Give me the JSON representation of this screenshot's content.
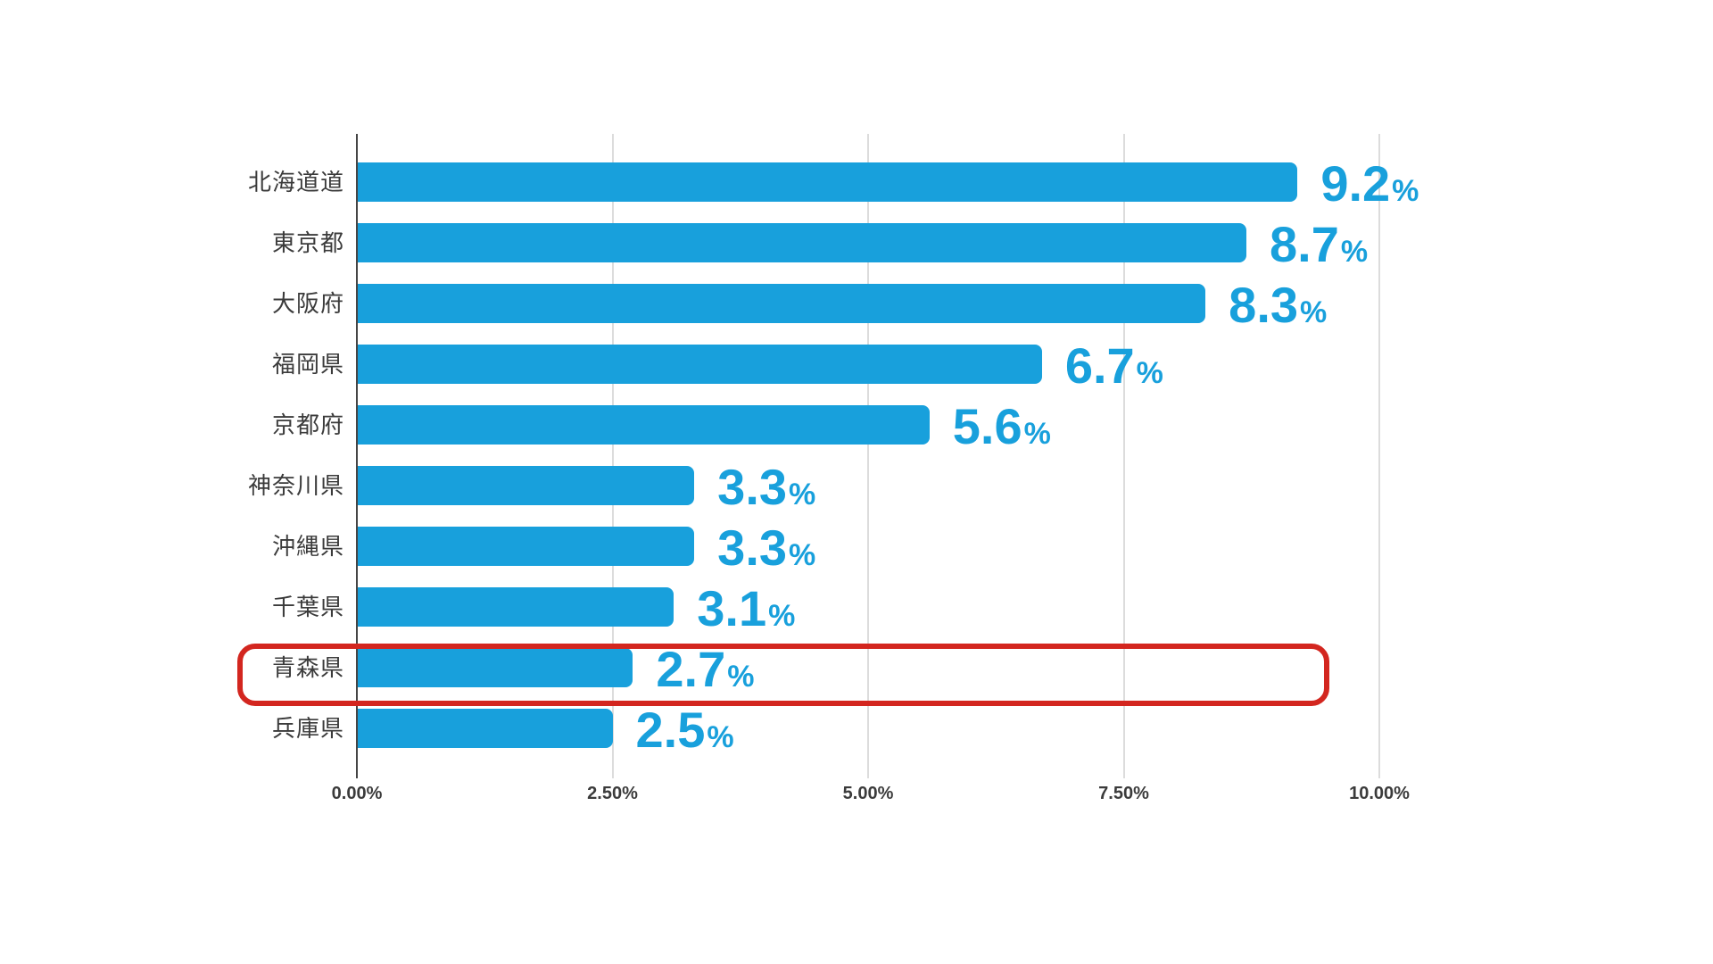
{
  "chart_data": {
    "type": "bar",
    "orientation": "horizontal",
    "title": "",
    "categories": [
      "北海道道",
      "東京都",
      "大阪府",
      "福岡県",
      "京都府",
      "神奈川県",
      "沖縄県",
      "千葉県",
      "青森県",
      "兵庫県"
    ],
    "values": [
      9.2,
      8.7,
      8.3,
      6.7,
      5.6,
      3.3,
      3.3,
      3.1,
      2.7,
      2.5
    ],
    "value_display": [
      "9.2",
      "8.7",
      "8.3",
      "6.7",
      "5.6",
      "3.3",
      "3.3",
      "3.1",
      "2.7",
      "2.5"
    ],
    "unit": "%",
    "xlim": [
      0,
      10
    ],
    "x_ticks": [
      {
        "value": 0,
        "label": "0.00%"
      },
      {
        "value": 2.5,
        "label": "2.50%"
      },
      {
        "value": 5,
        "label": "5.00%"
      },
      {
        "value": 7.5,
        "label": "7.50%"
      },
      {
        "value": 10,
        "label": "10.00%"
      }
    ],
    "grid": "vertical-only",
    "legend": "none",
    "highlight": {
      "category": "青森県",
      "index": 8,
      "style": "red-rounded-outline"
    }
  },
  "colors": {
    "bar": "#18a0dc",
    "value_label": "#18a0dc",
    "highlight_outline": "#d3261f",
    "gridline": "#dcdcdc",
    "axis_line": "#454545",
    "label_text": "#3b3b3b",
    "tick_text": "#3b3b3b",
    "background": "#ffffff"
  }
}
